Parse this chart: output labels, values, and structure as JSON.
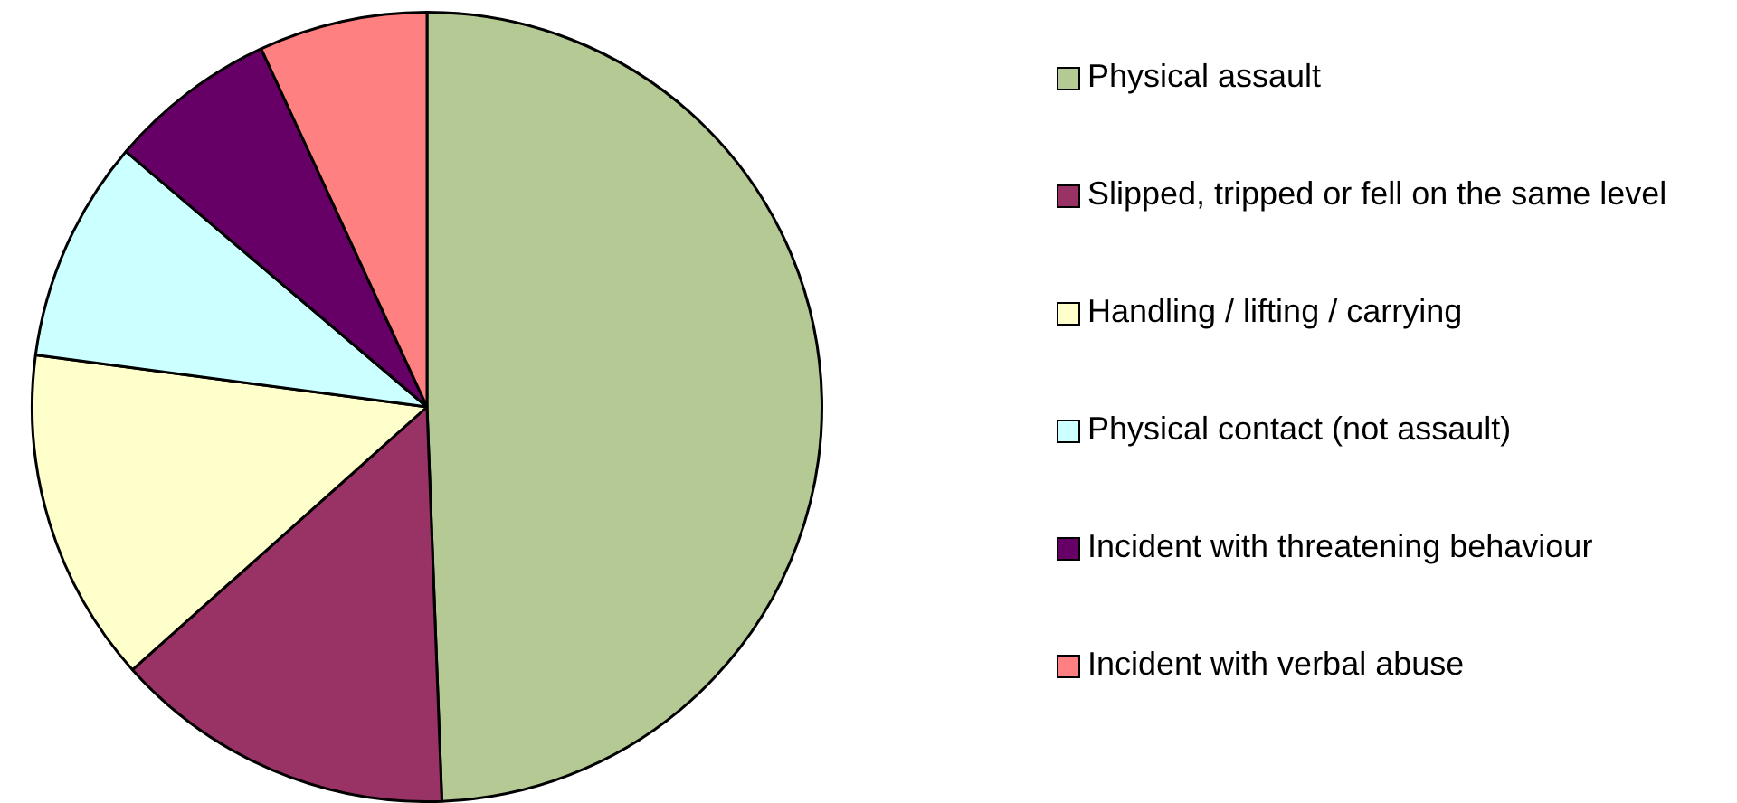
{
  "chart_data": {
    "type": "pie",
    "categories": [
      "Physical assault",
      "Slipped, tripped or fell on the same level",
      "Handling / lifting / carrying",
      "Physical contact (not assault)",
      "Incident with threatening behaviour",
      "Incident with verbal abuse"
    ],
    "values": [
      49.4,
      14.0,
      13.7,
      9.1,
      6.9,
      6.9
    ],
    "colors": [
      "#b5c994",
      "#993366",
      "#ffffcc",
      "#ccffff",
      "#660066",
      "#ff8080"
    ],
    "legend": "right"
  }
}
